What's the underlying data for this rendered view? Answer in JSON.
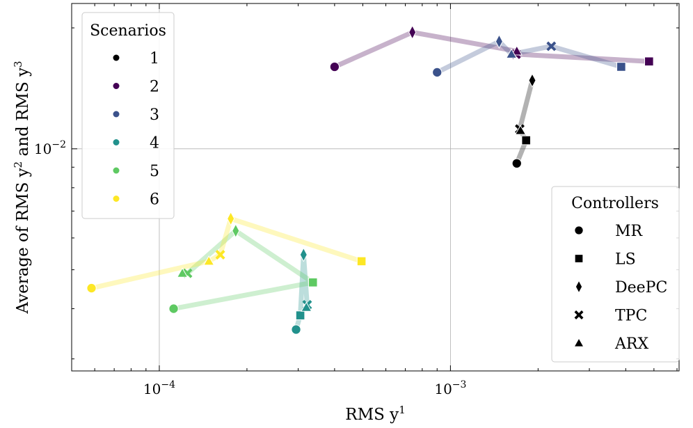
{
  "chart_data": {
    "type": "scatter",
    "xscale": "log",
    "yscale": "log",
    "xlabel": "RMS y",
    "xlabel_sup": "1",
    "ylabel_parts": [
      "Average of RMS y",
      "2",
      " and RMS y",
      "3"
    ],
    "xlim": [
      5e-05,
      0.0061
    ],
    "ylim": [
      0.0028,
      0.023
    ],
    "xticks": [
      {
        "value": 0.0001,
        "base": "10",
        "exp": "−4"
      },
      {
        "value": 0.001,
        "base": "10",
        "exp": "−3"
      }
    ],
    "yticks": [
      {
        "value": 0.01,
        "base": "10",
        "exp": "−2"
      }
    ],
    "grid": true,
    "controllers": [
      "MR",
      "LS",
      "DeePC",
      "TPC",
      "ARX"
    ],
    "controller_markers": [
      "circle",
      "square",
      "diamond",
      "x",
      "triangle"
    ],
    "series": [
      {
        "name": "1",
        "color": "#000000",
        "x": [
          0.00169,
          0.00182,
          0.00191,
          0.00173,
          0.00174
        ],
        "y": [
          0.0092,
          0.0105,
          0.0148,
          0.0112,
          0.0111
        ],
        "path": [
          "MR",
          "LS",
          "ARX",
          "TPC",
          "DeePC"
        ]
      },
      {
        "name": "2",
        "color": "#440154",
        "x": [
          0.0004,
          0.00481,
          0.00074,
          0.00168,
          0.00169
        ],
        "y": [
          0.016,
          0.0165,
          0.0195,
          0.0172,
          0.0175
        ],
        "path": [
          "MR",
          "DeePC",
          "ARX",
          "TPC",
          "LS"
        ]
      },
      {
        "name": "3",
        "color": "#3b528b",
        "x": [
          0.0009,
          0.00386,
          0.00147,
          0.00222,
          0.00162
        ],
        "y": [
          0.0155,
          0.016,
          0.0185,
          0.018,
          0.0172
        ],
        "path": [
          "MR",
          "DeePC",
          "ARX",
          "TPC",
          "LS"
        ]
      },
      {
        "name": "4",
        "color": "#21918c",
        "x": [
          0.000295,
          0.000305,
          0.000313,
          0.000322,
          0.00032
        ],
        "y": [
          0.00355,
          0.00385,
          0.00545,
          0.00409,
          0.00403
        ],
        "path": [
          "MR",
          "LS",
          "DeePC",
          "TPC",
          "ARX"
        ]
      },
      {
        "name": "5",
        "color": "#5ec962",
        "x": [
          0.000112,
          0.000337,
          0.000183,
          0.000125,
          0.00012
        ],
        "y": [
          0.004,
          0.00465,
          0.00625,
          0.0049,
          0.0049
        ],
        "path": [
          "MR",
          "LS",
          "DeePC",
          "TPC",
          "ARX"
        ]
      },
      {
        "name": "6",
        "color": "#fde725",
        "x": [
          5.85e-05,
          0.000495,
          0.000176,
          0.000162,
          0.000148
        ],
        "y": [
          0.0045,
          0.00525,
          0.0067,
          0.00545,
          0.00525
        ],
        "path": [
          "MR",
          "ARX",
          "TPC",
          "DeePC",
          "LS"
        ]
      }
    ],
    "legend_scenarios": {
      "title": "Scenarios",
      "position": "upper-left",
      "entries": [
        "1",
        "2",
        "3",
        "4",
        "5",
        "6"
      ]
    },
    "legend_controllers": {
      "title": "Controllers",
      "position": "lower-right",
      "entries": [
        "MR",
        "LS",
        "DeePC",
        "TPC",
        "ARX"
      ]
    }
  }
}
